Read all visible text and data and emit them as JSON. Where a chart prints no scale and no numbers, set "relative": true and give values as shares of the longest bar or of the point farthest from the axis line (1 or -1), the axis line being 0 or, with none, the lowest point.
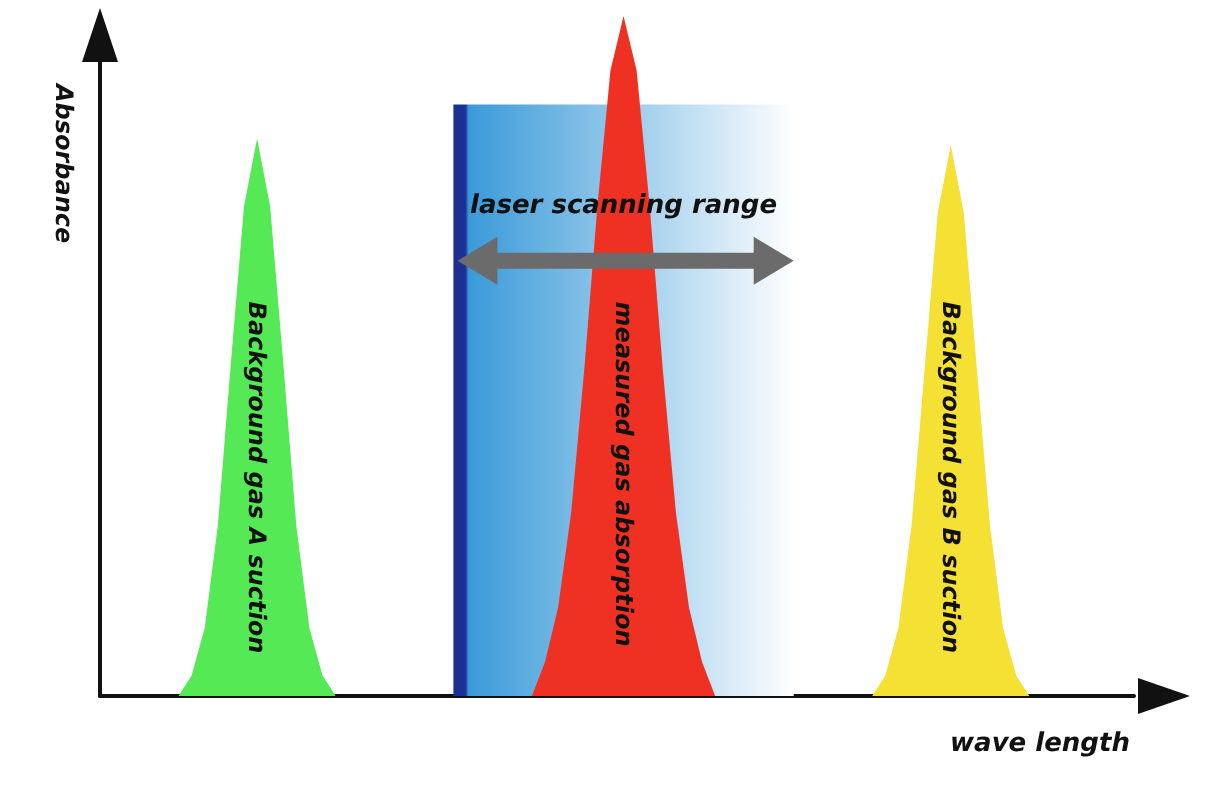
{
  "chart_data": {
    "type": "area",
    "relative": true,
    "xlabel": "wave length",
    "ylabel": "Absorbance",
    "grid": false,
    "legend": false,
    "marker": "none",
    "categories": [
      null,
      null,
      null,
      null,
      null,
      null,
      null,
      null,
      null,
      null,
      null,
      null,
      null,
      null,
      null,
      null,
      null,
      null,
      null,
      null,
      null,
      null,
      null,
      null,
      null,
      null,
      null,
      null,
      null,
      null,
      null,
      null,
      null,
      null,
      null,
      null,
      null,
      null,
      null,
      null,
      null,
      null,
      null,
      null,
      null,
      null,
      null,
      null,
      null,
      null,
      null,
      null,
      null,
      null,
      null,
      null,
      null,
      null,
      null,
      null,
      null,
      null,
      null,
      null,
      null,
      null,
      null,
      null,
      null,
      null,
      null,
      null,
      null,
      null,
      null,
      null,
      null,
      null,
      null,
      null
    ],
    "series": [
      {
        "name": "laser scanning range",
        "color": "#3a9ad9",
        "values": [
          null,
          null,
          null,
          null,
          null,
          null,
          null,
          null,
          null,
          null,
          null,
          null,
          null,
          null,
          null,
          null,
          null,
          null,
          null,
          null,
          null,
          null,
          null,
          null,
          null,
          null,
          null,
          0.87,
          0.87,
          0.87,
          0.87,
          0.87,
          0.87,
          0.87,
          0.87,
          0.87,
          0.87,
          0.87,
          0.87,
          null,
          null,
          null,
          0.87,
          0.87,
          0.87,
          0.87,
          0.87,
          0.87,
          0.87,
          0.87,
          0.87,
          0.87,
          0.87,
          0.87,
          null,
          null,
          null,
          null,
          null,
          null,
          null,
          null,
          null,
          null,
          null,
          null,
          null,
          null,
          null,
          null,
          null,
          null,
          null,
          null,
          null,
          null,
          null,
          null,
          null,
          null
        ]
      },
      {
        "name": "Background gas A suction",
        "color": "#55e955",
        "values": [
          0,
          0,
          0,
          0,
          0,
          0,
          0,
          0.03,
          0.1,
          0.25,
          0.49,
          0.72,
          0.82,
          0.72,
          0.49,
          0.25,
          0.1,
          0.03,
          0,
          0,
          0,
          0,
          0,
          0,
          0,
          0,
          0,
          0,
          0,
          0,
          0,
          0,
          0,
          0,
          0,
          0,
          0,
          0,
          0,
          0,
          0,
          0,
          0,
          0,
          0,
          0,
          0,
          0,
          0,
          0,
          0,
          0,
          0,
          0,
          0,
          0,
          0,
          0,
          0,
          0,
          0,
          0,
          0,
          0,
          0,
          0,
          0,
          0,
          0,
          0,
          0,
          0,
          0,
          0,
          0,
          0,
          0,
          0,
          0,
          0
        ]
      },
      {
        "name": "measured gas absorption",
        "color": "#ef3123",
        "values": [
          0,
          0,
          0,
          0,
          0,
          0,
          0,
          0,
          0,
          0,
          0,
          0,
          0,
          0,
          0,
          0,
          0,
          0,
          0,
          0,
          0,
          0,
          0,
          0,
          0,
          0,
          0,
          0,
          0,
          0,
          0,
          0,
          0,
          0,
          0.05,
          0.13,
          0.27,
          0.48,
          0.72,
          0.92,
          1,
          0.92,
          0.72,
          0.48,
          0.27,
          0.13,
          0.05,
          0,
          0,
          0,
          0,
          0,
          0,
          0,
          0,
          0,
          0,
          0,
          0,
          0,
          0,
          0,
          0,
          0,
          0,
          0,
          0,
          0,
          0,
          0,
          0,
          0,
          0,
          0,
          0,
          0,
          0,
          0,
          0,
          0
        ]
      },
      {
        "name": "Background gas B suction",
        "color": "#f5e034",
        "values": [
          0,
          0,
          0,
          0,
          0,
          0,
          0,
          0,
          0,
          0,
          0,
          0,
          0,
          0,
          0,
          0,
          0,
          0,
          0,
          0,
          0,
          0,
          0,
          0,
          0,
          0,
          0,
          0,
          0,
          0,
          0,
          0,
          0,
          0,
          0,
          0,
          0,
          0,
          0,
          0,
          0,
          0,
          0,
          0,
          0,
          0,
          0,
          0,
          0,
          0,
          0,
          0,
          0,
          0,
          0,
          0,
          0,
          0,
          0,
          0,
          0.03,
          0.1,
          0.25,
          0.48,
          0.71,
          0.81,
          0.71,
          0.48,
          0.25,
          0.1,
          0.03,
          0,
          0,
          0,
          0,
          0,
          0,
          0,
          0,
          0
        ]
      }
    ]
  }
}
